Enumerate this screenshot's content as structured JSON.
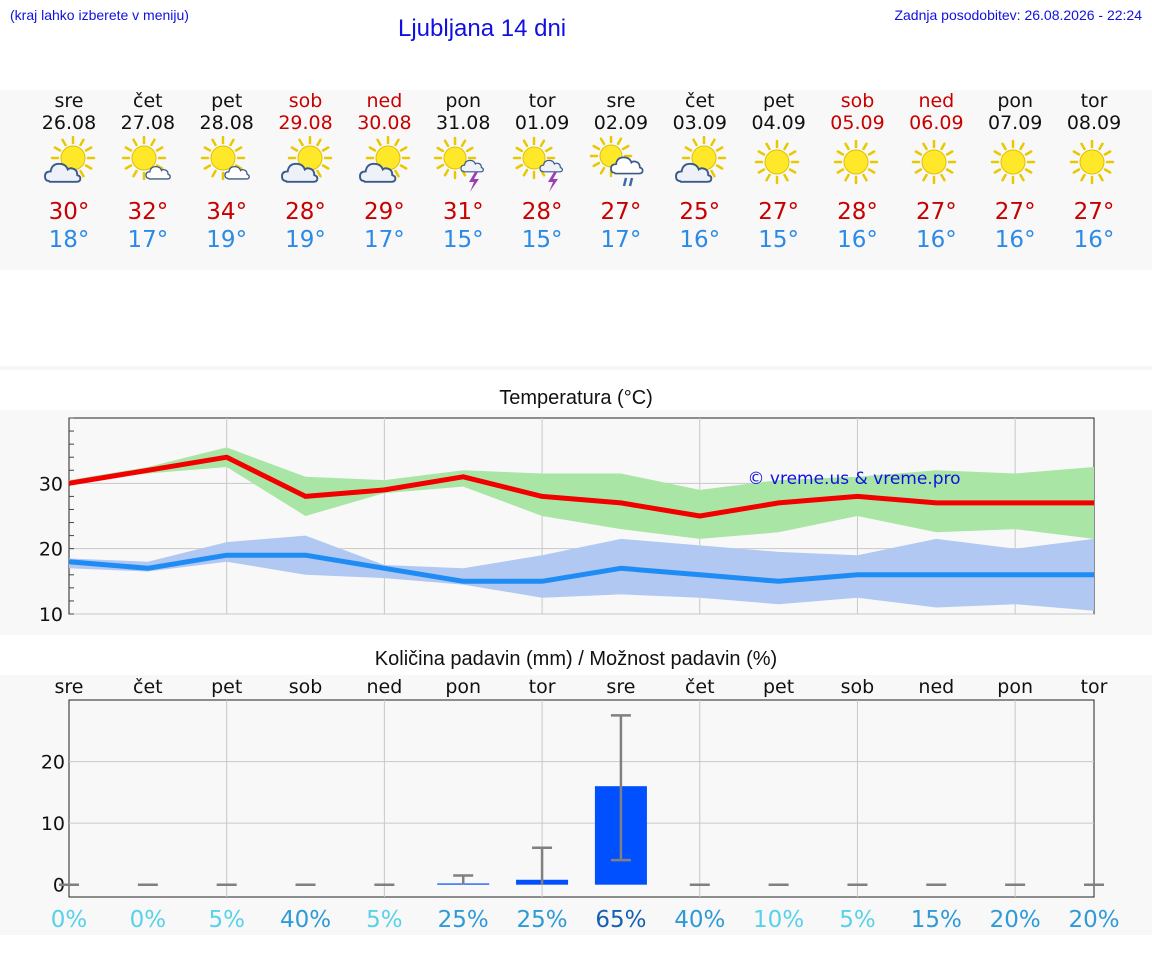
{
  "header": {
    "hint": "(kraj lahko izberete v meniju)",
    "title": "Ljubljana 14 dni",
    "updated": "Zadnja posodobitev: 26.08.2026 - 22:24"
  },
  "days": [
    {
      "name": "sre",
      "date": "26.08",
      "weekend": false,
      "icon": "sun-cloud-icon",
      "tmax": "30°",
      "tmin": "18°"
    },
    {
      "name": "čet",
      "date": "27.08",
      "weekend": false,
      "icon": "sun-small-cloud-icon",
      "tmax": "32°",
      "tmin": "17°"
    },
    {
      "name": "pet",
      "date": "28.08",
      "weekend": false,
      "icon": "sun-small-cloud-icon",
      "tmax": "34°",
      "tmin": "19°"
    },
    {
      "name": "sob",
      "date": "29.08",
      "weekend": true,
      "icon": "sun-cloud-icon",
      "tmax": "28°",
      "tmin": "19°"
    },
    {
      "name": "ned",
      "date": "30.08",
      "weekend": true,
      "icon": "sun-cloud-icon",
      "tmax": "29°",
      "tmin": "17°"
    },
    {
      "name": "pon",
      "date": "31.08",
      "weekend": false,
      "icon": "sun-thunder-icon",
      "tmax": "31°",
      "tmin": "15°"
    },
    {
      "name": "tor",
      "date": "01.09",
      "weekend": false,
      "icon": "sun-thunder-icon",
      "tmax": "28°",
      "tmin": "15°"
    },
    {
      "name": "sre",
      "date": "02.09",
      "weekend": false,
      "icon": "sun-rain-icon",
      "tmax": "27°",
      "tmin": "17°"
    },
    {
      "name": "čet",
      "date": "03.09",
      "weekend": false,
      "icon": "sun-cloud-icon",
      "tmax": "25°",
      "tmin": "16°"
    },
    {
      "name": "pet",
      "date": "04.09",
      "weekend": false,
      "icon": "sun-icon",
      "tmax": "27°",
      "tmin": "15°"
    },
    {
      "name": "sob",
      "date": "05.09",
      "weekend": true,
      "icon": "sun-icon",
      "tmax": "28°",
      "tmin": "16°"
    },
    {
      "name": "ned",
      "date": "06.09",
      "weekend": true,
      "icon": "sun-icon",
      "tmax": "27°",
      "tmin": "16°"
    },
    {
      "name": "pon",
      "date": "07.09",
      "weekend": false,
      "icon": "sun-icon",
      "tmax": "27°",
      "tmin": "16°"
    },
    {
      "name": "tor",
      "date": "08.09",
      "weekend": false,
      "icon": "sun-icon",
      "tmax": "27°",
      "tmin": "16°"
    }
  ],
  "colors": {
    "max_line": "#f20000",
    "max_band": "#a9e6a5",
    "min_line": "#1f8cf5",
    "min_band": "#b0c8f2",
    "bar": "#0050ff",
    "error_bar": "#808080",
    "watermark": "#1010e0"
  },
  "chart_data": [
    {
      "type": "line",
      "title": "Temperatura (°C)",
      "x": [
        "26.08",
        "27.08",
        "28.08",
        "29.08",
        "30.08",
        "31.08",
        "01.09",
        "02.09",
        "03.09",
        "04.09",
        "05.09",
        "06.09",
        "07.09",
        "08.09"
      ],
      "ylim": [
        10,
        40
      ],
      "yticks": [
        10,
        20,
        30
      ],
      "grid": true,
      "watermark": "© vreme.us & vreme.pro",
      "series": [
        {
          "role": "max",
          "values": [
            30,
            32,
            34,
            28,
            29,
            31,
            28,
            27,
            25,
            27,
            28,
            27,
            27,
            27
          ],
          "band_low": [
            30,
            31.5,
            32.5,
            25,
            28.5,
            29.5,
            25,
            23,
            21.5,
            22.5,
            25,
            22.5,
            23,
            21.5
          ],
          "band_high": [
            30.5,
            32.5,
            35.5,
            31,
            30.5,
            32,
            31.5,
            31.5,
            29,
            30.5,
            31,
            32,
            31.5,
            32.5
          ]
        },
        {
          "role": "min",
          "values": [
            18,
            17,
            19,
            19,
            17,
            15,
            15,
            17,
            16,
            15,
            16,
            16,
            16,
            16
          ],
          "band_low": [
            17,
            16.5,
            18,
            16,
            15.5,
            14.5,
            12.5,
            13,
            12.5,
            11.5,
            12.5,
            11,
            11.5,
            10.5
          ],
          "band_high": [
            18.5,
            18,
            21,
            22,
            17.5,
            17,
            19,
            21.5,
            20.5,
            19.5,
            19,
            21.5,
            20,
            21.5
          ]
        }
      ]
    },
    {
      "type": "bar",
      "title": "Količina padavin (mm) / Možnost padavin (%)",
      "categories": [
        "sre",
        "čet",
        "pet",
        "sob",
        "ned",
        "pon",
        "tor",
        "sre",
        "čet",
        "pet",
        "sob",
        "ned",
        "pon",
        "tor"
      ],
      "values": [
        0,
        0,
        0,
        0,
        0,
        0.2,
        0.8,
        16,
        0,
        0,
        0,
        0,
        0,
        0
      ],
      "error_high": [
        0,
        0,
        0,
        0,
        0,
        1.5,
        6,
        27.5,
        0,
        0,
        0,
        0,
        0,
        0
      ],
      "error_low": [
        0,
        0,
        0,
        0,
        0,
        0,
        0,
        4,
        0,
        0,
        0,
        0,
        0,
        0
      ],
      "probability": [
        "0%",
        "0%",
        "5%",
        "40%",
        "5%",
        "25%",
        "25%",
        "65%",
        "40%",
        "10%",
        "5%",
        "15%",
        "20%",
        "20%"
      ],
      "probability_colors": [
        "#57d2e8",
        "#57d2e8",
        "#57d2e8",
        "#2f9ad8",
        "#57d2e8",
        "#2f9ad8",
        "#2f9ad8",
        "#1560b0",
        "#2f9ad8",
        "#57d2e8",
        "#57d2e8",
        "#2f9ad8",
        "#2f9ad8",
        "#2f9ad8"
      ],
      "ylim": [
        -2,
        30
      ],
      "yticks": [
        0,
        10,
        20
      ],
      "grid": true
    }
  ]
}
